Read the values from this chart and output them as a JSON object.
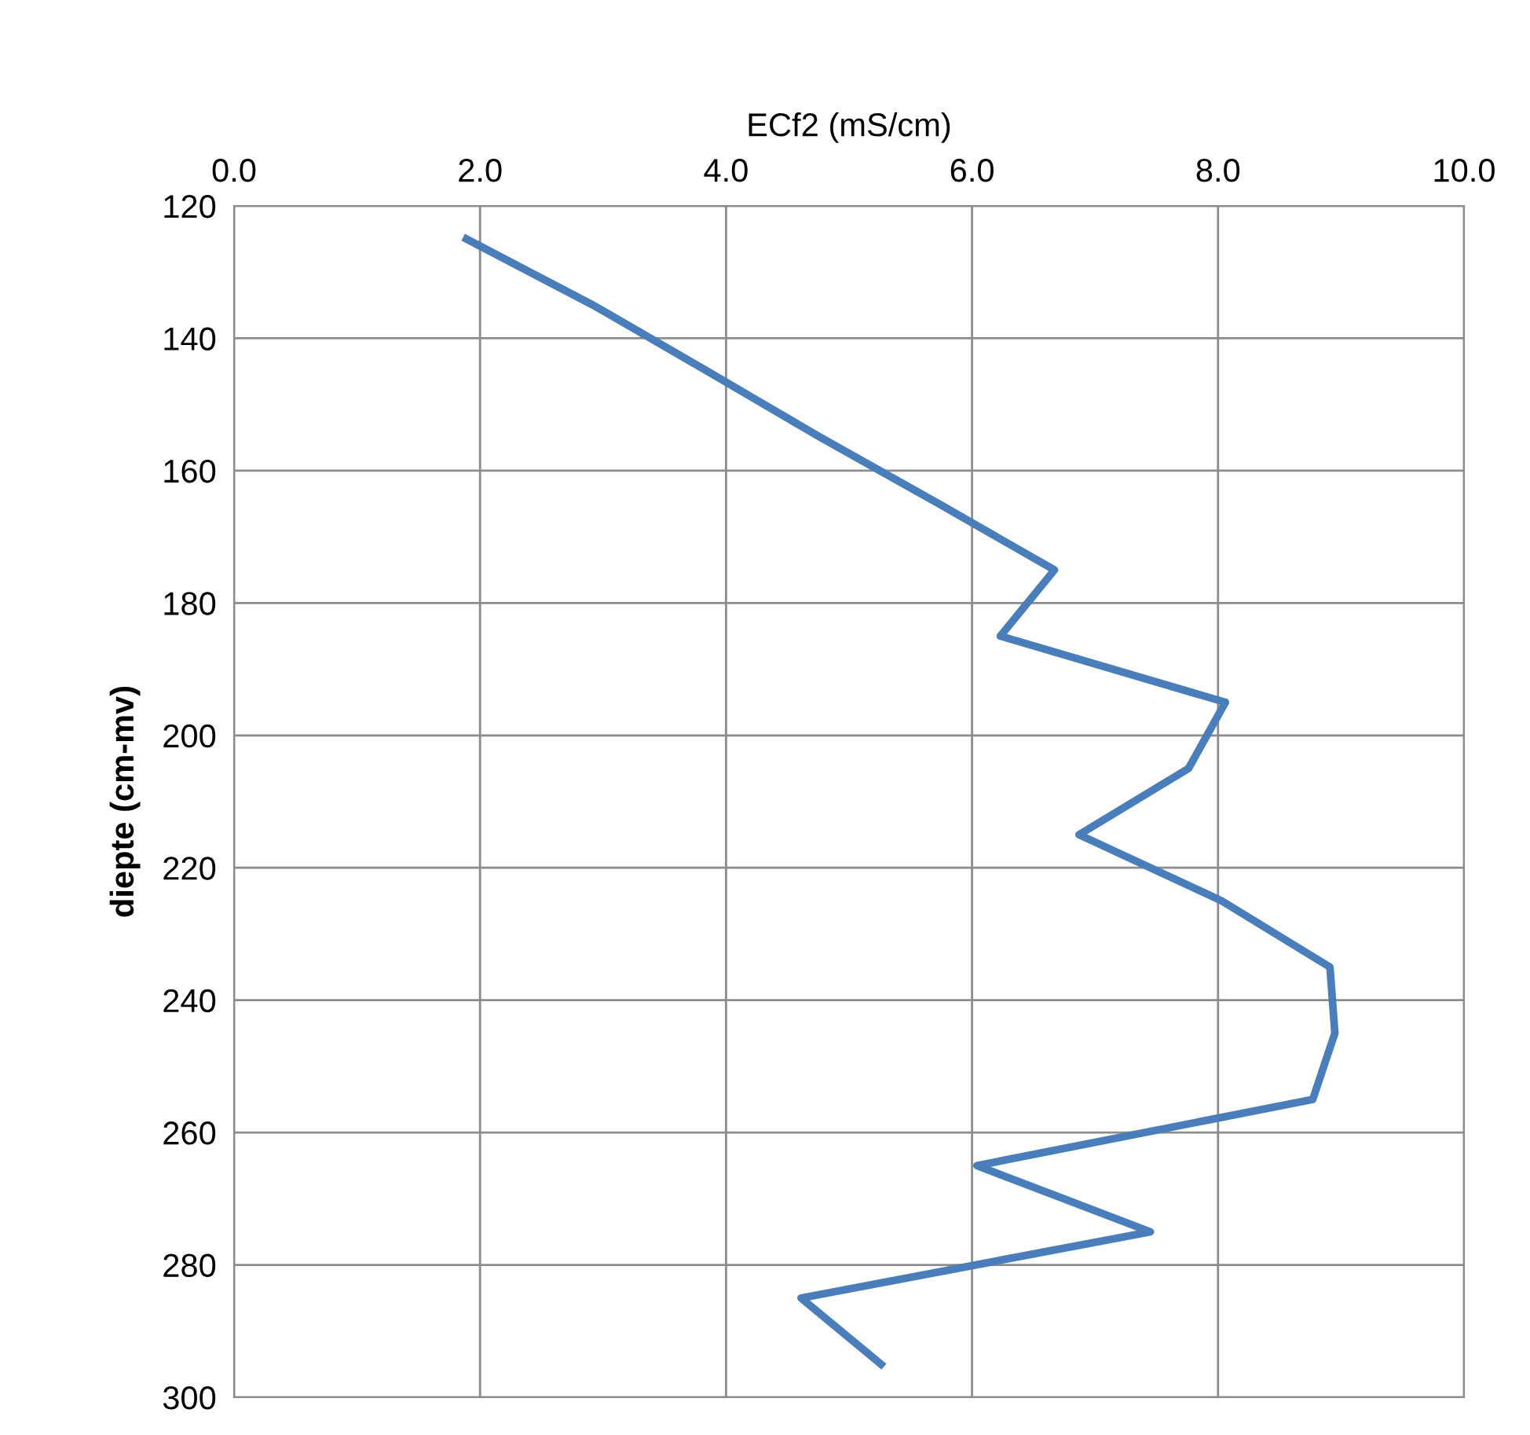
{
  "chart_data": {
    "type": "line",
    "xlabel": "ECf2 (mS/cm)",
    "ylabel": "diepte (cm-mv)",
    "series": [
      {
        "color": "#4a7ebb",
        "x": [
          1.89,
          2.92,
          3.85,
          4.77,
          5.73,
          6.67,
          6.23,
          8.06,
          7.76,
          6.87,
          8.03,
          8.91,
          8.95,
          8.77,
          6.04,
          7.45,
          4.61,
          5.26
        ],
        "values": [
          125,
          135,
          145,
          155,
          165,
          175,
          185,
          195,
          205,
          215,
          225,
          235,
          245,
          255,
          265,
          275,
          285,
          295
        ]
      }
    ],
    "xlim": [
      0,
      10
    ],
    "xticks": [
      {
        "value": 0,
        "label": "0.0"
      },
      {
        "value": 2,
        "label": "2.0"
      },
      {
        "value": 4,
        "label": "4.0"
      },
      {
        "value": 6,
        "label": "6.0"
      },
      {
        "value": 8,
        "label": "8.0"
      },
      {
        "value": 10,
        "label": "10.0"
      }
    ],
    "ylim": [
      300,
      120
    ],
    "yticks": [
      120,
      140,
      160,
      180,
      200,
      220,
      240,
      260,
      280,
      300
    ],
    "grid": true,
    "marker": "none",
    "line_style": "solid"
  }
}
